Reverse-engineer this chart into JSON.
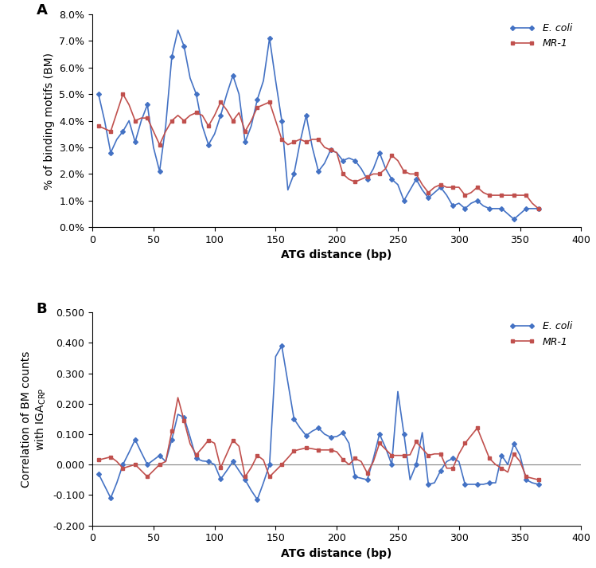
{
  "panel_a": {
    "ecoli_x": [
      5,
      10,
      15,
      20,
      25,
      30,
      35,
      40,
      45,
      50,
      55,
      60,
      65,
      70,
      75,
      80,
      85,
      90,
      95,
      100,
      105,
      110,
      115,
      120,
      125,
      130,
      135,
      140,
      145,
      150,
      155,
      160,
      165,
      170,
      175,
      180,
      185,
      190,
      195,
      200,
      205,
      210,
      215,
      220,
      225,
      230,
      235,
      240,
      245,
      250,
      255,
      260,
      265,
      270,
      275,
      280,
      285,
      290,
      295,
      300,
      305,
      310,
      315,
      320,
      325,
      330,
      335,
      340,
      345,
      350,
      355,
      360,
      365
    ],
    "ecoli_y": [
      0.05,
      0.04,
      0.028,
      0.033,
      0.036,
      0.04,
      0.032,
      0.04,
      0.046,
      0.03,
      0.021,
      0.038,
      0.064,
      0.074,
      0.068,
      0.056,
      0.05,
      0.038,
      0.031,
      0.035,
      0.042,
      0.05,
      0.057,
      0.05,
      0.032,
      0.038,
      0.048,
      0.055,
      0.071,
      0.055,
      0.04,
      0.014,
      0.02,
      0.032,
      0.042,
      0.03,
      0.021,
      0.024,
      0.029,
      0.028,
      0.025,
      0.026,
      0.025,
      0.022,
      0.018,
      0.022,
      0.028,
      0.022,
      0.018,
      0.016,
      0.01,
      0.014,
      0.018,
      0.014,
      0.011,
      0.013,
      0.015,
      0.012,
      0.008,
      0.009,
      0.007,
      0.009,
      0.01,
      0.008,
      0.007,
      0.007,
      0.007,
      0.005,
      0.003,
      0.005,
      0.007,
      0.007,
      0.007
    ],
    "mr1_x": [
      5,
      10,
      15,
      20,
      25,
      30,
      35,
      40,
      45,
      50,
      55,
      60,
      65,
      70,
      75,
      80,
      85,
      90,
      95,
      100,
      105,
      110,
      115,
      120,
      125,
      130,
      135,
      140,
      145,
      150,
      155,
      160,
      165,
      170,
      175,
      180,
      185,
      190,
      195,
      200,
      205,
      210,
      215,
      220,
      225,
      230,
      235,
      240,
      245,
      250,
      255,
      260,
      265,
      270,
      275,
      280,
      285,
      290,
      295,
      300,
      305,
      310,
      315,
      320,
      325,
      330,
      335,
      340,
      345,
      350,
      355,
      360,
      365
    ],
    "mr1_y": [
      0.038,
      0.037,
      0.036,
      0.043,
      0.05,
      0.046,
      0.04,
      0.041,
      0.041,
      0.036,
      0.031,
      0.036,
      0.04,
      0.042,
      0.04,
      0.042,
      0.043,
      0.042,
      0.038,
      0.042,
      0.047,
      0.044,
      0.04,
      0.043,
      0.036,
      0.04,
      0.045,
      0.046,
      0.047,
      0.04,
      0.033,
      0.031,
      0.032,
      0.033,
      0.032,
      0.033,
      0.033,
      0.03,
      0.029,
      0.028,
      0.02,
      0.018,
      0.017,
      0.018,
      0.019,
      0.02,
      0.02,
      0.022,
      0.027,
      0.025,
      0.021,
      0.02,
      0.02,
      0.016,
      0.013,
      0.015,
      0.016,
      0.015,
      0.015,
      0.015,
      0.012,
      0.013,
      0.015,
      0.013,
      0.012,
      0.012,
      0.012,
      0.012,
      0.012,
      0.012,
      0.012,
      0.009,
      0.007
    ],
    "xlabel": "ATG distance (bp)",
    "ylabel": "% of binding motifs (BM)",
    "ylim": [
      0.0,
      0.08
    ],
    "yticks": [
      0.0,
      0.01,
      0.02,
      0.03,
      0.04,
      0.05,
      0.06,
      0.07,
      0.08
    ],
    "xlim": [
      0,
      400
    ],
    "xticks": [
      0,
      50,
      100,
      150,
      200,
      250,
      300,
      350,
      400
    ],
    "panel_label": "A"
  },
  "panel_b": {
    "ecoli_x": [
      5,
      10,
      15,
      20,
      25,
      30,
      35,
      40,
      45,
      50,
      55,
      60,
      65,
      70,
      75,
      80,
      85,
      90,
      95,
      100,
      105,
      110,
      115,
      120,
      125,
      130,
      135,
      140,
      145,
      150,
      155,
      160,
      165,
      170,
      175,
      180,
      185,
      190,
      195,
      200,
      205,
      210,
      215,
      220,
      225,
      230,
      235,
      240,
      245,
      250,
      255,
      260,
      265,
      270,
      275,
      280,
      285,
      290,
      295,
      300,
      305,
      310,
      315,
      320,
      325,
      330,
      335,
      340,
      345,
      350,
      355,
      360,
      365
    ],
    "ecoli_y": [
      -0.03,
      -0.07,
      -0.11,
      -0.06,
      0.0,
      0.04,
      0.082,
      0.04,
      0.0,
      0.015,
      0.03,
      0.01,
      0.082,
      0.165,
      0.155,
      0.09,
      0.02,
      0.012,
      0.01,
      0.0,
      -0.048,
      -0.02,
      0.01,
      -0.02,
      -0.05,
      -0.085,
      -0.115,
      -0.06,
      0.0,
      0.355,
      0.39,
      0.27,
      0.15,
      0.12,
      0.095,
      0.11,
      0.12,
      0.1,
      0.09,
      0.092,
      0.104,
      0.07,
      -0.04,
      -0.045,
      -0.05,
      0.02,
      0.1,
      0.055,
      0.0,
      0.24,
      0.1,
      -0.05,
      0.0,
      0.105,
      -0.065,
      -0.06,
      -0.02,
      0.01,
      0.02,
      0.01,
      -0.065,
      -0.065,
      -0.065,
      -0.065,
      -0.06,
      -0.06,
      0.03,
      0.0,
      0.068,
      0.03,
      -0.05,
      -0.06,
      -0.065
    ],
    "mr1_x": [
      5,
      10,
      15,
      20,
      25,
      30,
      35,
      40,
      45,
      50,
      55,
      60,
      65,
      70,
      75,
      80,
      85,
      90,
      95,
      100,
      105,
      110,
      115,
      120,
      125,
      130,
      135,
      140,
      145,
      150,
      155,
      160,
      165,
      170,
      175,
      180,
      185,
      190,
      195,
      200,
      205,
      210,
      215,
      220,
      225,
      230,
      235,
      240,
      245,
      250,
      255,
      260,
      265,
      270,
      275,
      280,
      285,
      290,
      295,
      300,
      305,
      310,
      315,
      320,
      325,
      330,
      335,
      340,
      345,
      350,
      355,
      360,
      365
    ],
    "mr1_y": [
      0.015,
      0.02,
      0.025,
      0.01,
      -0.012,
      -0.006,
      0.0,
      -0.02,
      -0.04,
      -0.02,
      0.0,
      0.01,
      0.11,
      0.22,
      0.145,
      0.068,
      0.032,
      0.055,
      0.08,
      0.07,
      -0.01,
      0.035,
      0.08,
      0.06,
      -0.04,
      -0.01,
      0.03,
      0.015,
      -0.04,
      -0.02,
      0.0,
      0.022,
      0.045,
      0.05,
      0.055,
      0.052,
      0.048,
      0.048,
      0.048,
      0.042,
      0.017,
      0.0,
      0.02,
      0.01,
      -0.028,
      0.01,
      0.07,
      0.05,
      0.03,
      0.03,
      0.03,
      0.032,
      0.075,
      0.052,
      0.03,
      0.035,
      0.035,
      -0.012,
      -0.012,
      0.035,
      0.07,
      0.095,
      0.12,
      0.07,
      0.02,
      0.0,
      -0.012,
      -0.025,
      0.035,
      0.01,
      -0.04,
      -0.045,
      -0.05
    ],
    "xlabel": "ATG distance (bp)",
    "ylim": [
      -0.2,
      0.5
    ],
    "yticks": [
      -0.2,
      -0.1,
      0.0,
      0.1,
      0.2,
      0.3,
      0.4,
      0.5
    ],
    "xlim": [
      0,
      400
    ],
    "xticks": [
      0,
      50,
      100,
      150,
      200,
      250,
      300,
      350,
      400
    ],
    "panel_label": "B"
  },
  "ecoli_color": "#4472C4",
  "mr1_color": "#C0504D",
  "ecoli_label": "E. coli",
  "mr1_label": "MR-1",
  "marker_size": 3.0,
  "linewidth": 1.2,
  "bg_color": "#ffffff"
}
